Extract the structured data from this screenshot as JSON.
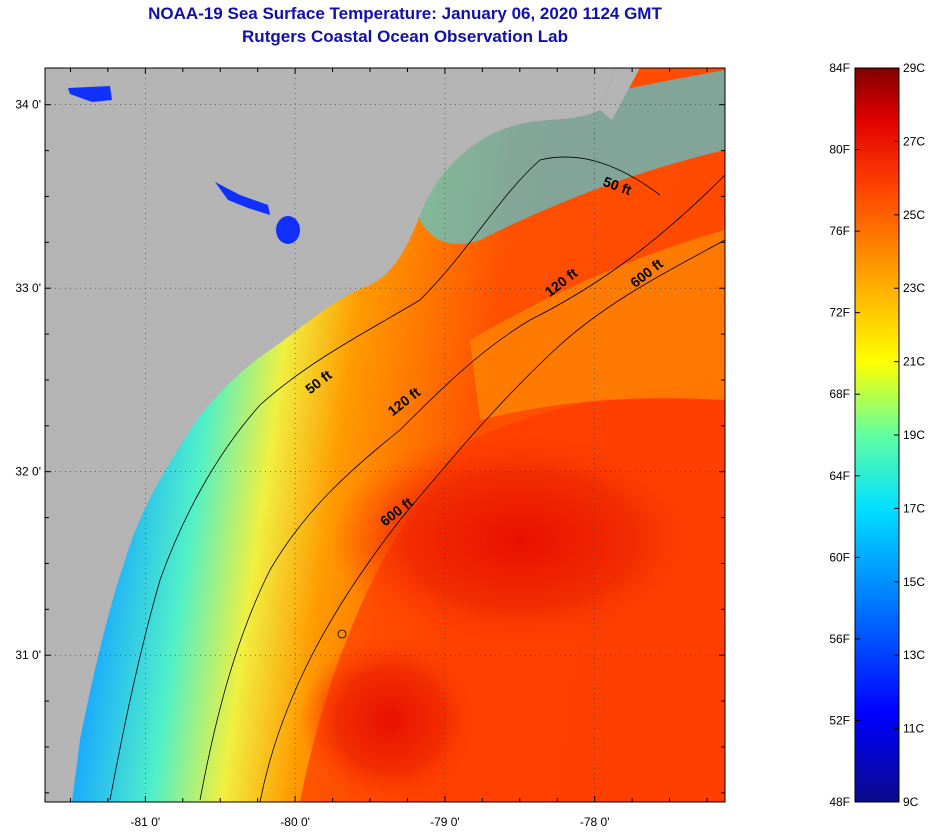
{
  "title": "NOAA-19 Sea Surface Temperature:  January 06, 2020 1124 GMT",
  "subtitle": "Rutgers Coastal Ocean Observation Lab",
  "map": {
    "lon_range": [
      -81.67,
      -77.13
    ],
    "lat_range": [
      30.2,
      34.2
    ],
    "lat_ticks": [
      {
        "value": 34.0,
        "label": "34 0'"
      },
      {
        "value": 33.0,
        "label": "33 0'"
      },
      {
        "value": 32.0,
        "label": "32 0'"
      },
      {
        "value": 31.0,
        "label": "31 0'"
      }
    ],
    "lon_ticks": [
      {
        "value": -81.0,
        "label": "-81 0'"
      },
      {
        "value": -80.0,
        "label": "-80 0'"
      },
      {
        "value": -79.0,
        "label": "-79 0'"
      },
      {
        "value": -78.0,
        "label": "-78 0'"
      }
    ],
    "land_color": "#b4b4b4",
    "contour_labels": [
      {
        "text": "50 ft",
        "lon": -77.95,
        "lat": 33.56
      },
      {
        "text": "50 ft",
        "lon": -79.9,
        "lat": 32.42
      },
      {
        "text": "120 ft",
        "lon": -78.3,
        "lat": 32.95
      },
      {
        "text": "120 ft",
        "lon": -79.35,
        "lat": 32.3
      },
      {
        "text": "600 ft",
        "lon": -77.73,
        "lat": 33.0
      },
      {
        "text": "600 ft",
        "lon": -79.4,
        "lat": 31.7
      }
    ]
  },
  "colorbar": {
    "left_labels": [
      "84F",
      "80F",
      "76F",
      "72F",
      "68F",
      "64F",
      "60F",
      "56F",
      "52F",
      "48F"
    ],
    "right_labels": [
      "29C",
      "27C",
      "25C",
      "23C",
      "21C",
      "19C",
      "17C",
      "15C",
      "13C",
      "11C",
      "9C"
    ],
    "colors": [
      "#0a0a8a",
      "#0000ff",
      "#0080ff",
      "#00e0ff",
      "#60ffa0",
      "#ffff00",
      "#ffa000",
      "#ff4000",
      "#e00000",
      "#800000"
    ]
  }
}
